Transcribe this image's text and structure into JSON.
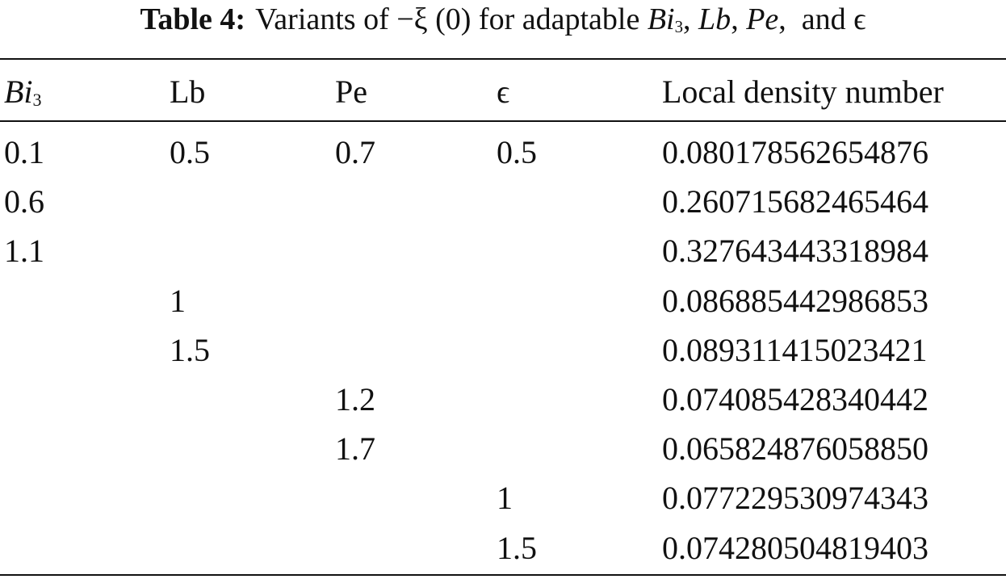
{
  "title": {
    "label": "Table 4:",
    "parts": [
      "Variants of −ξ (0) for adaptable ",
      "Bi",
      "3",
      ", ",
      "Lb",
      ", ",
      "Pe",
      ",  and ϵ"
    ]
  },
  "table": {
    "header": [
      {
        "main": "Bi",
        "sub": "3"
      },
      "Lb",
      "Pe",
      "ϵ",
      "Local density number"
    ],
    "rows": [
      [
        "0.1",
        "0.5",
        "0.7",
        "0.5",
        "0.080178562654876"
      ],
      [
        "0.6",
        null,
        null,
        null,
        "0.260715682465464"
      ],
      [
        "1.1",
        null,
        null,
        null,
        "0.327643443318984"
      ],
      [
        null,
        "1",
        null,
        null,
        "0.086885442986853"
      ],
      [
        null,
        "1.5",
        null,
        null,
        "0.089311415023421"
      ],
      [
        null,
        null,
        "1.2",
        null,
        "0.074085428340442"
      ],
      [
        null,
        null,
        "1.7",
        null,
        "0.065824876058850"
      ],
      [
        null,
        null,
        null,
        "1",
        "0.077229530974343"
      ],
      [
        null,
        null,
        null,
        "1.5",
        "0.074280504819403"
      ]
    ]
  }
}
